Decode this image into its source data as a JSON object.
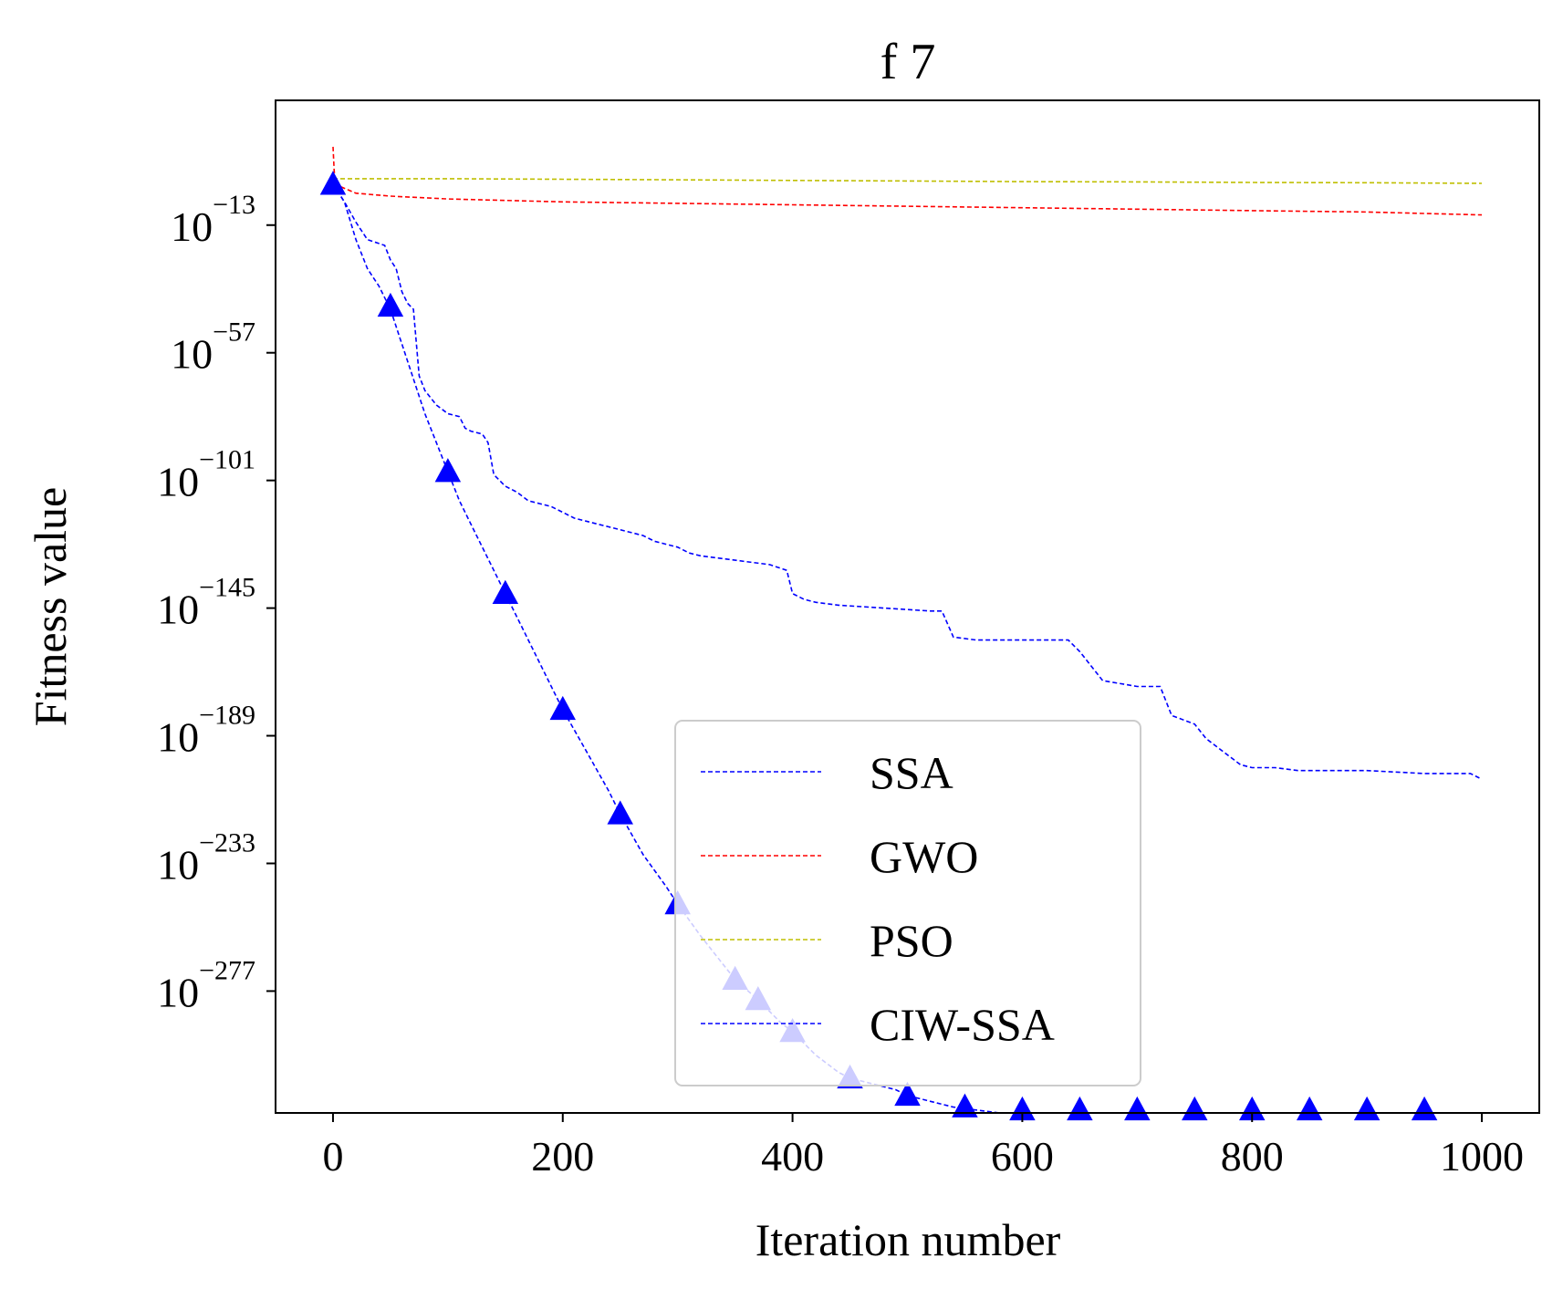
{
  "chart_data": {
    "type": "line",
    "title": "f 7",
    "xlabel": "Iteration number",
    "ylabel": "Fitness value",
    "xlim": [
      -50,
      1050
    ],
    "xticks": [
      0,
      200,
      400,
      600,
      800,
      1000
    ],
    "xtick_labels": [
      "0",
      "200",
      "400",
      "600",
      "800",
      "1000"
    ],
    "y_scale": "log",
    "ylim_exponent": [
      -319,
      30
    ],
    "yticks_exponent": [
      -13,
      -57,
      -101,
      -145,
      -189,
      -233,
      -277
    ],
    "ytick_base": "10",
    "ytick_exponent_labels": [
      "−13",
      "−57",
      "−101",
      "−145",
      "−189",
      "−233",
      "−277"
    ],
    "grid": false,
    "legend_position": "lower-right",
    "series": [
      {
        "name": "SSA",
        "color": "#0000ff",
        "linestyle": "dashed",
        "marker": "none",
        "points": [
          [
            0,
            1
          ],
          [
            10,
            -5
          ],
          [
            20,
            -12
          ],
          [
            30,
            -18
          ],
          [
            45,
            -20
          ],
          [
            50,
            -25
          ],
          [
            55,
            -28
          ],
          [
            60,
            -36
          ],
          [
            65,
            -40
          ],
          [
            70,
            -42
          ],
          [
            75,
            -65
          ],
          [
            80,
            -70
          ],
          [
            90,
            -75
          ],
          [
            100,
            -78
          ],
          [
            110,
            -79
          ],
          [
            115,
            -83
          ],
          [
            120,
            -84
          ],
          [
            130,
            -85
          ],
          [
            135,
            -88
          ],
          [
            140,
            -99
          ],
          [
            145,
            -101
          ],
          [
            150,
            -103
          ],
          [
            160,
            -105
          ],
          [
            170,
            -108
          ],
          [
            180,
            -109
          ],
          [
            190,
            -110
          ],
          [
            200,
            -112
          ],
          [
            210,
            -114
          ],
          [
            220,
            -115
          ],
          [
            230,
            -116
          ],
          [
            240,
            -117
          ],
          [
            250,
            -118
          ],
          [
            260,
            -119
          ],
          [
            270,
            -120
          ],
          [
            280,
            -122
          ],
          [
            290,
            -123
          ],
          [
            300,
            -124
          ],
          [
            310,
            -126
          ],
          [
            320,
            -127
          ],
          [
            340,
            -128
          ],
          [
            360,
            -129
          ],
          [
            380,
            -130
          ],
          [
            395,
            -132
          ],
          [
            400,
            -140
          ],
          [
            410,
            -142
          ],
          [
            420,
            -143
          ],
          [
            430,
            -143.5
          ],
          [
            440,
            -144
          ],
          [
            460,
            -144.5
          ],
          [
            480,
            -145
          ],
          [
            500,
            -145.5
          ],
          [
            520,
            -146
          ],
          [
            530,
            -146
          ],
          [
            540,
            -155
          ],
          [
            560,
            -156
          ],
          [
            600,
            -156
          ],
          [
            640,
            -156
          ],
          [
            650,
            -160
          ],
          [
            660,
            -165
          ],
          [
            670,
            -170
          ],
          [
            700,
            -172
          ],
          [
            720,
            -172
          ],
          [
            730,
            -182
          ],
          [
            750,
            -185
          ],
          [
            760,
            -190
          ],
          [
            780,
            -196
          ],
          [
            790,
            -199
          ],
          [
            800,
            -200
          ],
          [
            820,
            -200
          ],
          [
            840,
            -201
          ],
          [
            900,
            -201
          ],
          [
            950,
            -202
          ],
          [
            990,
            -202
          ],
          [
            1000,
            -204
          ]
        ]
      },
      {
        "name": "GWO",
        "color": "#ff0000",
        "linestyle": "dashed",
        "marker": "none",
        "points": [
          [
            0,
            14
          ],
          [
            1,
            6
          ],
          [
            2,
            1
          ],
          [
            20,
            -2
          ],
          [
            50,
            -3
          ],
          [
            100,
            -4
          ],
          [
            200,
            -5
          ],
          [
            300,
            -5.5
          ],
          [
            400,
            -6
          ],
          [
            500,
            -6.5
          ],
          [
            600,
            -7
          ],
          [
            700,
            -7.5
          ],
          [
            800,
            -8
          ],
          [
            900,
            -8.5
          ],
          [
            1000,
            -9.5
          ]
        ]
      },
      {
        "name": "PSO",
        "color": "#bfbf00",
        "linestyle": "dashed",
        "marker": "none",
        "points": [
          [
            0,
            3
          ],
          [
            100,
            3
          ],
          [
            200,
            2.8
          ],
          [
            300,
            2.6
          ],
          [
            400,
            2.4
          ],
          [
            500,
            2.2
          ],
          [
            600,
            2
          ],
          [
            700,
            1.9
          ],
          [
            800,
            1.7
          ],
          [
            900,
            1.6
          ],
          [
            1000,
            1.4
          ]
        ]
      },
      {
        "name": "CIW-SSA",
        "color": "#0000ff",
        "linestyle": "dashed",
        "marker": "triangle-up",
        "points": [
          [
            0,
            1
          ],
          [
            10,
            -5
          ],
          [
            20,
            -18
          ],
          [
            30,
            -28
          ],
          [
            40,
            -34
          ],
          [
            50,
            -42
          ],
          [
            60,
            -54
          ],
          [
            70,
            -66
          ],
          [
            80,
            -78
          ],
          [
            90,
            -88
          ],
          [
            100,
            -98
          ],
          [
            110,
            -108
          ],
          [
            120,
            -116
          ],
          [
            130,
            -124
          ],
          [
            140,
            -132
          ],
          [
            150,
            -140
          ],
          [
            160,
            -148
          ],
          [
            170,
            -156
          ],
          [
            180,
            -164
          ],
          [
            190,
            -172
          ],
          [
            200,
            -180
          ],
          [
            220,
            -194
          ],
          [
            240,
            -208
          ],
          [
            250,
            -216
          ],
          [
            270,
            -230
          ],
          [
            290,
            -241
          ],
          [
            300,
            -247
          ],
          [
            320,
            -258
          ],
          [
            340,
            -268
          ],
          [
            350,
            -273
          ],
          [
            370,
            -280
          ],
          [
            390,
            -288
          ],
          [
            400,
            -291
          ],
          [
            420,
            -299
          ],
          [
            440,
            -305
          ],
          [
            450,
            -307
          ],
          [
            470,
            -309
          ],
          [
            490,
            -311
          ],
          [
            500,
            -313
          ],
          [
            520,
            -315
          ],
          [
            540,
            -317
          ],
          [
            560,
            -318
          ],
          [
            580,
            -319
          ],
          [
            600,
            -319
          ],
          [
            700,
            -319
          ],
          [
            800,
            -319
          ],
          [
            900,
            -319
          ],
          [
            1000,
            -319
          ]
        ],
        "marker_points": [
          [
            0,
            1
          ],
          [
            50,
            -41
          ],
          [
            100,
            -98
          ],
          [
            150,
            -140
          ],
          [
            200,
            -180
          ],
          [
            250,
            -216
          ],
          [
            300,
            -247
          ],
          [
            350,
            -273
          ],
          [
            370,
            -280
          ],
          [
            400,
            -291
          ],
          [
            450,
            -307
          ],
          [
            500,
            -313
          ],
          [
            550,
            -317
          ],
          [
            600,
            -318
          ],
          [
            650,
            -318
          ],
          [
            700,
            -318
          ],
          [
            750,
            -318
          ],
          [
            800,
            -318
          ],
          [
            850,
            -318
          ],
          [
            900,
            -318
          ],
          [
            950,
            -318
          ]
        ]
      }
    ]
  }
}
